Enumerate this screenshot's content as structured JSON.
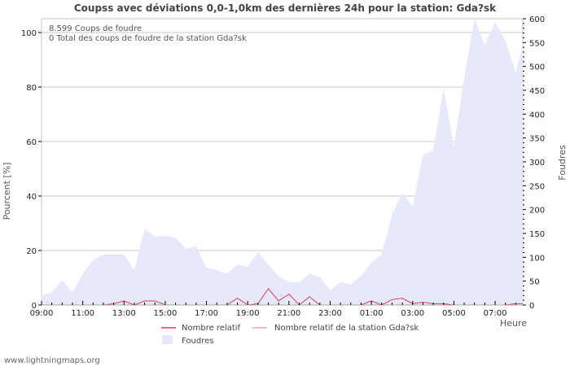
{
  "title": "Coupss avec déviations 0,0-1,0km des dernières 24h pour la station: Gda?sk",
  "info": {
    "line1": "8.599  Coups de foudre",
    "line2": "0 Total des coups de foudre de la station Gda?sk"
  },
  "legend": {
    "relative": "Nombre relatif",
    "relative_station": "Nombre relatif de la station Gda?sk",
    "strikes": "Foudres"
  },
  "footer": "www.lightningmaps.org",
  "colors": {
    "area_fill": "#e8e8fb",
    "relative_line": "#d04060",
    "relative_station_line": "#f0a0a0",
    "grid": "#c8c8c8"
  },
  "chart_data": {
    "type": "area",
    "title": "Coupss avec déviations 0,0-1,0km des dernières 24h pour la station: Gda?sk",
    "xlabel": "Heure",
    "ylabel": "Pourcent   [%]",
    "ylabel_right": "Foudres",
    "ylim": [
      0,
      100
    ],
    "ylim_right": [
      0,
      600
    ],
    "x_tick_labels": [
      "09:00",
      "11:00",
      "13:00",
      "15:00",
      "17:00",
      "19:00",
      "21:00",
      "23:00",
      "01:00",
      "03:00",
      "05:00",
      "07:00"
    ],
    "y_tick_labels": [
      "0",
      "20",
      "40",
      "60",
      "80",
      "100"
    ],
    "y_right_tick_labels": [
      "0",
      "50",
      "100",
      "150",
      "200",
      "250",
      "300",
      "350",
      "400",
      "450",
      "500",
      "550",
      "600"
    ],
    "grid": true,
    "legend_position": "bottom",
    "x": [
      "09:00",
      "09:30",
      "10:00",
      "10:30",
      "11:00",
      "11:30",
      "12:00",
      "12:30",
      "13:00",
      "13:30",
      "14:00",
      "14:30",
      "15:00",
      "15:30",
      "16:00",
      "16:30",
      "17:00",
      "17:30",
      "18:00",
      "18:30",
      "19:00",
      "19:30",
      "20:00",
      "20:30",
      "21:00",
      "21:30",
      "22:00",
      "22:30",
      "23:00",
      "23:30",
      "00:00",
      "00:30",
      "01:00",
      "01:30",
      "02:00",
      "02:30",
      "03:00",
      "03:30",
      "04:00",
      "04:30",
      "05:00",
      "05:30",
      "06:00",
      "06:30",
      "07:00",
      "07:30",
      "08:00",
      "08:15"
    ],
    "series": [
      {
        "name": "Foudres",
        "axis": "right",
        "values": [
          20,
          27,
          51,
          27,
          65,
          94,
          106,
          106,
          106,
          73,
          160,
          143,
          145,
          141,
          118,
          123,
          78,
          73,
          65,
          85,
          80,
          111,
          85,
          60,
          48,
          48,
          66,
          58,
          31,
          48,
          43,
          61,
          89,
          107,
          189,
          235,
          206,
          315,
          324,
          455,
          332,
          476,
          600,
          545,
          593,
          554,
          486,
          545
        ]
      },
      {
        "name": "Nombre relatif",
        "axis": "left",
        "values": [
          0,
          0,
          0,
          0,
          0,
          0,
          0,
          0.5,
          1.5,
          0,
          1.5,
          1.5,
          0,
          0,
          0,
          0,
          0,
          0,
          0,
          2.5,
          0,
          0.5,
          6,
          1.5,
          4,
          0,
          3,
          0,
          0,
          0,
          0,
          0,
          1.5,
          0,
          2,
          2.5,
          0.5,
          1,
          0.5,
          0.5,
          0,
          0,
          0,
          0,
          0,
          0,
          0.5,
          0.5
        ]
      },
      {
        "name": "Nombre relatif de la station Gda?sk",
        "axis": "left",
        "values": []
      }
    ]
  }
}
